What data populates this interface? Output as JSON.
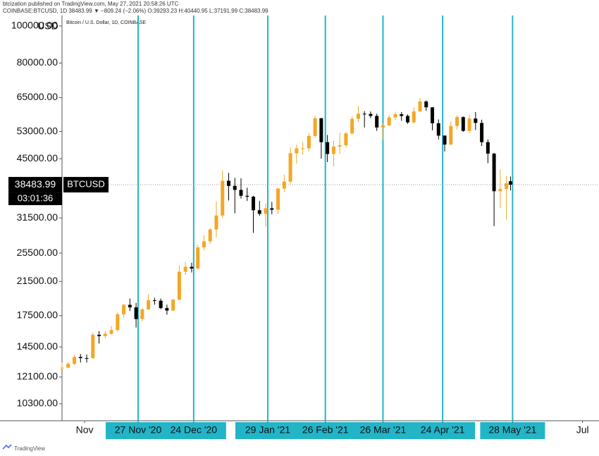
{
  "header": {
    "publisher": "btcization published on TradingView.com, May 27, 2021 20:58:26 UTC",
    "symbol_line": "COINBASE:BTCUSD, 1D 38483.99 ▼ −809.24 (−2.06%) O:39293.23 H:40440.95 L:37191.99 C:38483.99"
  },
  "footer": {
    "brand": "TradingView"
  },
  "chart_data": {
    "type": "candlestick",
    "title": "Bitcoin / U.S. Dollar, 1D, COINBASE",
    "currency": "USD",
    "log_scale": true,
    "ylim": [
      9300,
      106500
    ],
    "xlim": [
      "2020-10-21",
      "2021-07-09"
    ],
    "yticks": [
      {
        "value": 10300,
        "label": "10300.00"
      },
      {
        "value": 12100,
        "label": "12100.00"
      },
      {
        "value": 14500,
        "label": "14500.00"
      },
      {
        "value": 17500,
        "label": "17500.00"
      },
      {
        "value": 21500,
        "label": "21500.00"
      },
      {
        "value": 25500,
        "label": "25500.00"
      },
      {
        "value": 31500,
        "label": "31500.00"
      },
      {
        "value": 45000,
        "label": "45000.00"
      },
      {
        "value": 53000,
        "label": "53000.00"
      },
      {
        "value": 65000,
        "label": "65000.00"
      },
      {
        "value": 80000,
        "label": "80000.00"
      },
      {
        "value": 100000,
        "label": "100000.00"
      }
    ],
    "xticks": [
      {
        "value": "2020-11-01",
        "label": "Nov"
      },
      {
        "value": "2020-11-27",
        "label": "27 Nov '20"
      },
      {
        "value": "2020-12-24",
        "label": "24 Dec '20"
      },
      {
        "value": "2021-01-29",
        "label": "29 Jan '21"
      },
      {
        "value": "2021-02-26",
        "label": "26 Feb '21"
      },
      {
        "value": "2021-03-26",
        "label": "26 Mar '21"
      },
      {
        "value": "2021-04-24",
        "label": "24 Apr '21"
      },
      {
        "value": "2021-05-28",
        "label": "28 May '21"
      },
      {
        "value": "2021-07-01",
        "label": "Jul"
      }
    ],
    "vlines": [
      "2020-11-27",
      "2020-12-24",
      "2021-01-29",
      "2021-02-26",
      "2021-03-26",
      "2021-04-24",
      "2021-05-28"
    ],
    "vline_color": "#22b5c7",
    "up_color": "#f5a623",
    "down_color": "#000000",
    "last_price": 38483.99,
    "countdown": "03:01:36",
    "symbol_label": "BTCUSD",
    "x": [
      "2020-10-21",
      "2020-10-24",
      "2020-10-27",
      "2020-10-30",
      "2020-11-02",
      "2020-11-05",
      "2020-11-08",
      "2020-11-11",
      "2020-11-14",
      "2020-11-17",
      "2020-11-20",
      "2020-11-23",
      "2020-11-26",
      "2020-11-29",
      "2020-12-02",
      "2020-12-05",
      "2020-12-08",
      "2020-12-11",
      "2020-12-14",
      "2020-12-17",
      "2020-12-20",
      "2020-12-23",
      "2020-12-26",
      "2020-12-29",
      "2021-01-01",
      "2021-01-04",
      "2021-01-07",
      "2021-01-10",
      "2021-01-13",
      "2021-01-16",
      "2021-01-19",
      "2021-01-22",
      "2021-01-25",
      "2021-01-28",
      "2021-01-31",
      "2021-02-03",
      "2021-02-06",
      "2021-02-09",
      "2021-02-12",
      "2021-02-15",
      "2021-02-18",
      "2021-02-21",
      "2021-02-24",
      "2021-02-27",
      "2021-03-02",
      "2021-03-05",
      "2021-03-08",
      "2021-03-11",
      "2021-03-14",
      "2021-03-17",
      "2021-03-20",
      "2021-03-23",
      "2021-03-26",
      "2021-03-29",
      "2021-04-01",
      "2021-04-04",
      "2021-04-07",
      "2021-04-10",
      "2021-04-13",
      "2021-04-16",
      "2021-04-19",
      "2021-04-22",
      "2021-04-25",
      "2021-04-28",
      "2021-05-01",
      "2021-05-04",
      "2021-05-07",
      "2021-05-10",
      "2021-05-13",
      "2021-05-16",
      "2021-05-19",
      "2021-05-22",
      "2021-05-25",
      "2021-05-27"
    ],
    "open": [
      12750,
      12800,
      13100,
      13650,
      13560,
      13550,
      15600,
      15480,
      15700,
      16050,
      17650,
      18680,
      18400,
      17150,
      18180,
      19200,
      19150,
      18320,
      18050,
      19270,
      22800,
      23480,
      23240,
      26400,
      27370,
      29400,
      31970,
      39400,
      38200,
      37300,
      36000,
      35800,
      33000,
      32300,
      33400,
      33100,
      37600,
      39200,
      46500,
      47900,
      47900,
      51600,
      57400,
      49700,
      46300,
      48400,
      48800,
      52400,
      57200,
      59000,
      58900,
      58200,
      54300,
      55000,
      57700,
      58800,
      58200,
      56000,
      59800,
      63500,
      61300,
      55700,
      51700,
      49000,
      54800,
      57800,
      53200,
      57300,
      55800,
      49700,
      46400,
      37000,
      37500,
      39293.23
    ],
    "high": [
      13200,
      13250,
      13800,
      13900,
      13850,
      15800,
      15950,
      15950,
      16450,
      17850,
      18800,
      19400,
      18900,
      18300,
      19900,
      19500,
      19400,
      18700,
      19350,
      23700,
      24200,
      24050,
      26800,
      28400,
      29600,
      34800,
      41950,
      41300,
      40100,
      40000,
      37800,
      36000,
      34900,
      34400,
      34700,
      37700,
      40900,
      48200,
      48900,
      49700,
      52600,
      58350,
      57500,
      51900,
      50200,
      52600,
      52800,
      58000,
      61800,
      59900,
      59800,
      59000,
      55600,
      58500,
      59700,
      59600,
      58700,
      61300,
      64850,
      63900,
      61400,
      57000,
      51800,
      56400,
      58400,
      58000,
      58600,
      59600,
      56900,
      50500,
      46600,
      42200,
      40500,
      40440.95
    ],
    "low": [
      12700,
      12750,
      13000,
      13200,
      13200,
      13500,
      14800,
      15250,
      15600,
      15900,
      17300,
      18000,
      16300,
      16900,
      18100,
      18700,
      18200,
      17600,
      18000,
      19250,
      22350,
      22700,
      23100,
      25900,
      27000,
      28000,
      31500,
      35000,
      32400,
      35400,
      34900,
      28800,
      31900,
      29900,
      32200,
      32300,
      36800,
      38700,
      43700,
      46100,
      47000,
      51000,
      45000,
      44100,
      43000,
      46300,
      48200,
      52000,
      56100,
      54300,
      57400,
      53200,
      50300,
      54700,
      56800,
      56500,
      55500,
      55500,
      59700,
      60000,
      53400,
      50500,
      47000,
      48800,
      53700,
      52900,
      52500,
      53500,
      48600,
      43800,
      30000,
      33500,
      31200,
      37191.99
    ],
    "close": [
      12800,
      13100,
      13650,
      13560,
      13550,
      15600,
      15480,
      15700,
      16050,
      17650,
      18680,
      18400,
      17150,
      18180,
      19200,
      19150,
      18320,
      18050,
      19270,
      22800,
      23480,
      23240,
      26400,
      27370,
      29400,
      31970,
      39400,
      38200,
      37300,
      36000,
      35800,
      33000,
      32300,
      33400,
      33100,
      37600,
      39200,
      46500,
      47900,
      47900,
      51600,
      57400,
      49700,
      46300,
      48400,
      48800,
      52400,
      57200,
      59000,
      58900,
      58200,
      54300,
      55000,
      57700,
      58800,
      58200,
      56000,
      59800,
      63500,
      61300,
      55700,
      51700,
      49000,
      54800,
      57800,
      53200,
      57300,
      55800,
      49700,
      46400,
      37000,
      37500,
      38800,
      38483.99
    ]
  }
}
